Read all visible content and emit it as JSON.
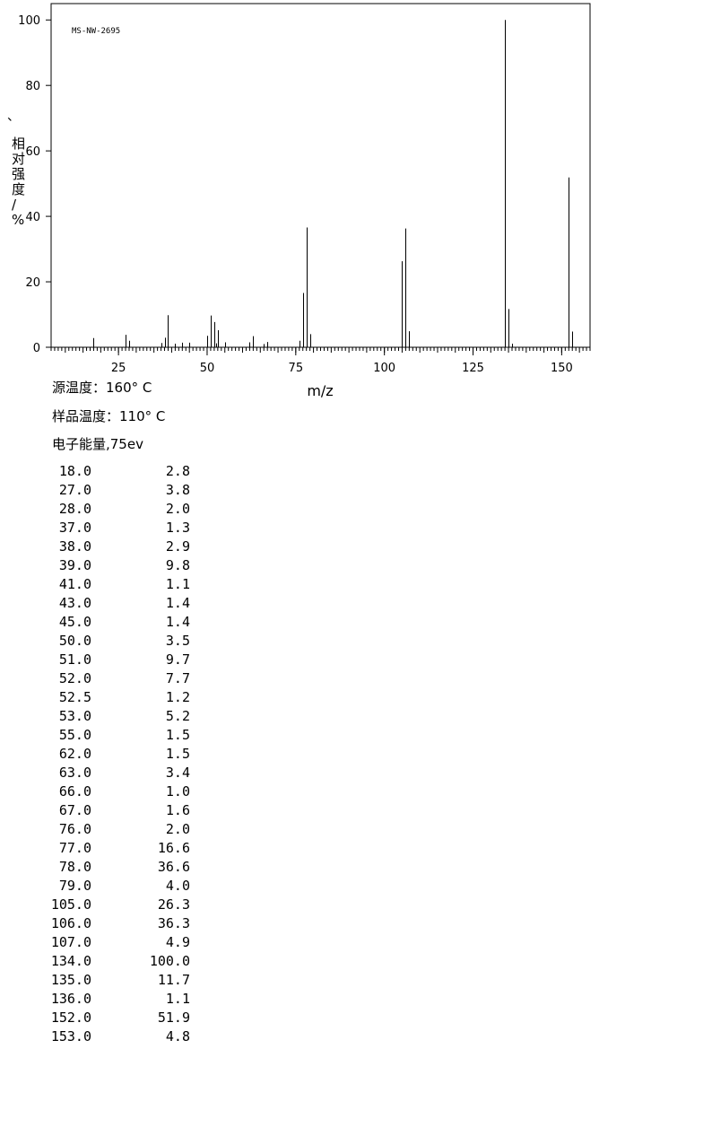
{
  "chart_data": {
    "type": "bar",
    "annotation": "MS-NW-2695",
    "xlabel": "m/z",
    "ylabel": "相对强度/%",
    "ylabel_mark": "、",
    "xlim": [
      6,
      158
    ],
    "ylim": [
      0,
      105
    ],
    "xticks": [
      25,
      50,
      75,
      100,
      125,
      150
    ],
    "yticks": [
      0,
      20,
      40,
      60,
      80,
      100
    ],
    "x": [
      18.0,
      27.0,
      28.0,
      37.0,
      38.0,
      39.0,
      41.0,
      43.0,
      45.0,
      50.0,
      51.0,
      52.0,
      52.5,
      53.0,
      55.0,
      62.0,
      63.0,
      66.0,
      67.0,
      76.0,
      77.0,
      78.0,
      79.0,
      105.0,
      106.0,
      107.0,
      134.0,
      135.0,
      136.0,
      152.0,
      153.0
    ],
    "values": [
      2.8,
      3.8,
      2.0,
      1.3,
      2.9,
      9.8,
      1.1,
      1.4,
      1.4,
      3.5,
      9.7,
      7.7,
      1.2,
      5.2,
      1.5,
      1.5,
      3.4,
      1.0,
      1.6,
      2.0,
      16.6,
      36.6,
      4.0,
      26.3,
      36.3,
      4.9,
      100.0,
      11.7,
      1.1,
      51.9,
      4.8
    ]
  },
  "conditions": {
    "source_temp": "源温度：160° C",
    "sample_temp": "样品温度：110° C",
    "electron_energy": "电子能量,75ev"
  },
  "peaks": [
    {
      "mz": "18.0",
      "intensity": "2.8"
    },
    {
      "mz": "27.0",
      "intensity": "3.8"
    },
    {
      "mz": "28.0",
      "intensity": "2.0"
    },
    {
      "mz": "37.0",
      "intensity": "1.3"
    },
    {
      "mz": "38.0",
      "intensity": "2.9"
    },
    {
      "mz": "39.0",
      "intensity": "9.8"
    },
    {
      "mz": "41.0",
      "intensity": "1.1"
    },
    {
      "mz": "43.0",
      "intensity": "1.4"
    },
    {
      "mz": "45.0",
      "intensity": "1.4"
    },
    {
      "mz": "50.0",
      "intensity": "3.5"
    },
    {
      "mz": "51.0",
      "intensity": "9.7"
    },
    {
      "mz": "52.0",
      "intensity": "7.7"
    },
    {
      "mz": "52.5",
      "intensity": "1.2"
    },
    {
      "mz": "53.0",
      "intensity": "5.2"
    },
    {
      "mz": "55.0",
      "intensity": "1.5"
    },
    {
      "mz": "62.0",
      "intensity": "1.5"
    },
    {
      "mz": "63.0",
      "intensity": "3.4"
    },
    {
      "mz": "66.0",
      "intensity": "1.0"
    },
    {
      "mz": "67.0",
      "intensity": "1.6"
    },
    {
      "mz": "76.0",
      "intensity": "2.0"
    },
    {
      "mz": "77.0",
      "intensity": "16.6"
    },
    {
      "mz": "78.0",
      "intensity": "36.6"
    },
    {
      "mz": "79.0",
      "intensity": "4.0"
    },
    {
      "mz": "105.0",
      "intensity": "26.3"
    },
    {
      "mz": "106.0",
      "intensity": "36.3"
    },
    {
      "mz": "107.0",
      "intensity": "4.9"
    },
    {
      "mz": "134.0",
      "intensity": "100.0"
    },
    {
      "mz": "135.0",
      "intensity": "11.7"
    },
    {
      "mz": "136.0",
      "intensity": "1.1"
    },
    {
      "mz": "152.0",
      "intensity": "51.9"
    },
    {
      "mz": "153.0",
      "intensity": "4.8"
    }
  ]
}
